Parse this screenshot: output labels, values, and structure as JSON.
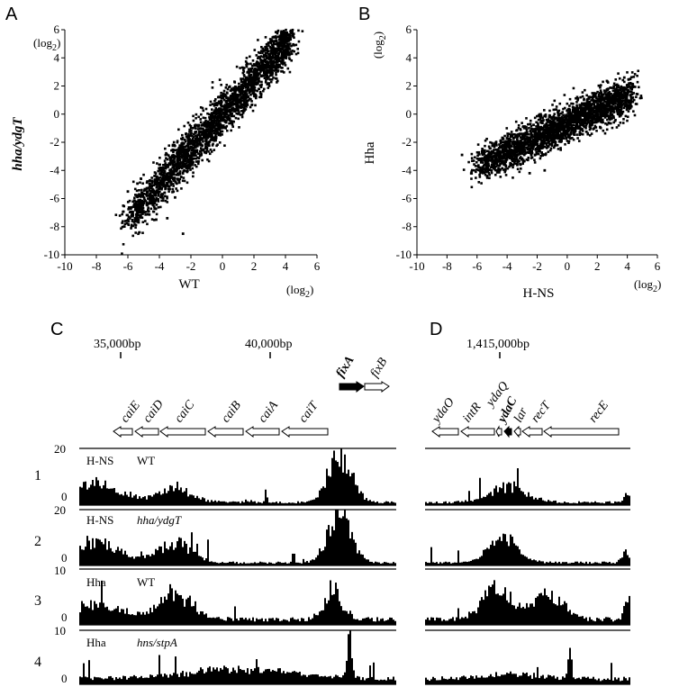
{
  "figure": {
    "panels": {
      "A": {
        "letter": "A",
        "unit_y": "(log",
        "unit_x": "(log",
        "unit_sub": "2",
        "unit_close": ")",
        "ylabel": "hha/ydgT",
        "xlabel": "WT"
      },
      "B": {
        "letter": "B",
        "unit_y": "(log",
        "unit_x": "(log",
        "unit_sub": "2",
        "unit_close": ")",
        "ylabel": "Hha",
        "xlabel": "H-NS"
      },
      "C": {
        "letter": "C",
        "coord_labels": [
          "35,000bp",
          "40,000bp"
        ],
        "genes": [
          "caiE",
          "caiD",
          "caiC",
          "caiB",
          "caiA",
          "caiT",
          "fixA",
          "fixB"
        ]
      },
      "D": {
        "letter": "D",
        "coord_labels": [
          "1,415,000bp"
        ],
        "genes": [
          "ydaO",
          "intR",
          "ydaQ",
          "ydaC",
          "lar",
          "recT",
          "recE"
        ]
      }
    },
    "tracks": [
      {
        "row": "1",
        "protein": "H-NS",
        "strain": "WT",
        "ymax": "20",
        "ymin": "0",
        "strain_italic": false
      },
      {
        "row": "2",
        "protein": "H-NS",
        "strain": "hha/ydgT",
        "ymax": "20",
        "ymin": "0",
        "strain_italic": true
      },
      {
        "row": "3",
        "protein": "Hha",
        "strain": "WT",
        "ymax": "10",
        "ymin": "0",
        "strain_italic": false
      },
      {
        "row": "4",
        "protein": "Hha",
        "strain": "hns/stpA",
        "ymax": "10",
        "ymin": "0",
        "strain_italic": true
      }
    ]
  },
  "chart_data": [
    {
      "type": "scatter",
      "panel": "A",
      "xlabel": "WT",
      "ylabel": "hha/ydgT",
      "xlim": [
        -10,
        6
      ],
      "ylim": [
        -10,
        6
      ],
      "xticks": [
        "-10",
        "-8",
        "-6",
        "-4",
        "-2",
        "0",
        "2",
        "4",
        "6"
      ],
      "yticks": [
        "-10",
        "-8",
        "-6",
        "-4",
        "-2",
        "0",
        "2",
        "4",
        "6"
      ],
      "color": "#000000",
      "trend": {
        "slope": 1.25,
        "intercept": 0.0,
        "x_range": [
          -6,
          4.3
        ],
        "spread": 0.8
      },
      "extreme_points": [
        [
          4.2,
          4.8
        ],
        [
          -5.5,
          -6.5
        ],
        [
          -4.2,
          -7.5
        ],
        [
          -3.5,
          -7.4
        ],
        [
          -2.5,
          -8.5
        ],
        [
          -6,
          -5.5
        ],
        [
          3,
          4.2
        ]
      ]
    },
    {
      "type": "scatter",
      "panel": "B",
      "xlabel": "H-NS",
      "ylabel": "Hha",
      "xlim": [
        -10,
        6
      ],
      "ylim": [
        -10,
        6
      ],
      "xticks": [
        "-10",
        "-8",
        "-6",
        "-4",
        "-2",
        "0",
        "2",
        "4",
        "6"
      ],
      "yticks": [
        "-10",
        "-8",
        "-6",
        "-4",
        "-2",
        "0",
        "2",
        "4",
        "6"
      ],
      "color": "#000000",
      "trend": {
        "slope": 0.5,
        "intercept": -0.7,
        "x_range": [
          -6,
          4.3
        ],
        "spread": 0.65
      },
      "extreme_points": [
        [
          -7,
          -2.9
        ],
        [
          -5.8,
          -3.8
        ],
        [
          4.2,
          2.5
        ],
        [
          3.8,
          2.6
        ],
        [
          -2.5,
          -4.2
        ],
        [
          -1.5,
          -4.0
        ]
      ]
    },
    {
      "type": "bar",
      "panel": "C/D",
      "series": [
        {
          "name": "H-NS WT",
          "region_C": [
            [
              0.05,
              0.22,
              7
            ],
            [
              0.3,
              0.15,
              5
            ],
            [
              0.82,
              0.1,
              19
            ]
          ],
          "region_D": [
            [
              0.4,
              0.25,
              6
            ],
            [
              0.98,
              0.04,
              3
            ]
          ]
        },
        {
          "name": "H-NS hha/ydgT",
          "region_C": [
            [
              0.05,
              0.22,
              8
            ],
            [
              0.3,
              0.15,
              8
            ],
            [
              0.82,
              0.1,
              20
            ]
          ],
          "region_D": [
            [
              0.38,
              0.2,
              9
            ],
            [
              0.97,
              0.05,
              4
            ]
          ]
        },
        {
          "name": "Hha WT",
          "region_C": [
            [
              0.05,
              0.22,
              3
            ],
            [
              0.3,
              0.15,
              5
            ],
            [
              0.8,
              0.08,
              6
            ]
          ],
          "region_D": [
            [
              0.35,
              0.2,
              6
            ],
            [
              0.6,
              0.2,
              5
            ],
            [
              0.98,
              0.04,
              5
            ]
          ]
        },
        {
          "name": "Hha hns/stpA",
          "region_C": [
            [
              0.5,
              0.5,
              2
            ],
            [
              0.85,
              0.02,
              9
            ]
          ],
          "region_D": [
            [
              0.7,
              0.02,
              5
            ],
            [
              0.4,
              0.4,
              1
            ]
          ]
        }
      ]
    }
  ]
}
